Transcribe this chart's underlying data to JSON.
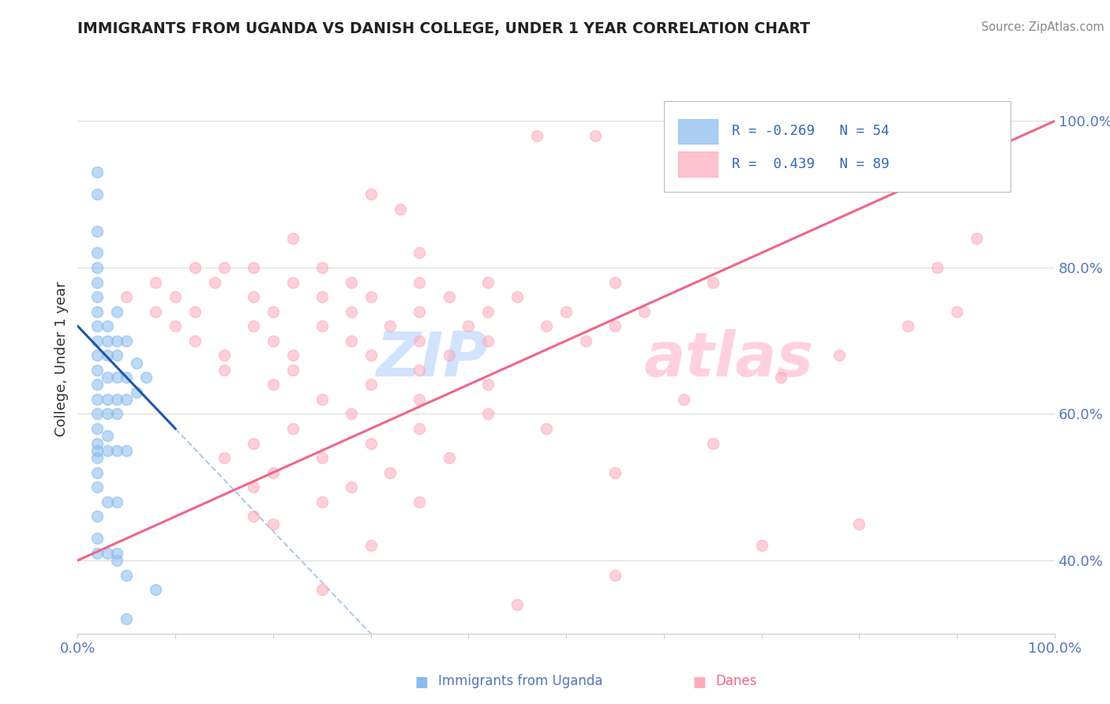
{
  "title": "IMMIGRANTS FROM UGANDA VS DANISH COLLEGE, UNDER 1 YEAR CORRELATION CHART",
  "source": "Source: ZipAtlas.com",
  "ylabel": "College, Under 1 year",
  "legend_label1": "Immigrants from Uganda",
  "legend_label2": "Danes",
  "color_uganda": "#88BBEE",
  "color_danes": "#FFAABB",
  "color_trendline_uganda": "#2255AA",
  "color_trendline_danes": "#EE6688",
  "color_trendline_ext": "#AACCEE",
  "xlim": [
    0.0,
    1.0
  ],
  "ylim": [
    0.3,
    1.05
  ],
  "right_yticks": [
    0.4,
    0.6,
    0.8,
    1.0
  ],
  "right_yticklabels": [
    "40.0%",
    "60.0%",
    "80.0%",
    "100.0%"
  ],
  "xtick_positions": [
    0.0,
    0.1,
    0.2,
    0.3,
    0.4,
    0.5,
    0.6,
    0.7,
    0.8,
    0.9,
    1.0
  ],
  "uganda_points": [
    [
      0.02,
      0.93
    ],
    [
      0.02,
      0.9
    ],
    [
      0.02,
      0.85
    ],
    [
      0.02,
      0.82
    ],
    [
      0.02,
      0.8
    ],
    [
      0.02,
      0.78
    ],
    [
      0.02,
      0.76
    ],
    [
      0.02,
      0.74
    ],
    [
      0.02,
      0.72
    ],
    [
      0.02,
      0.7
    ],
    [
      0.02,
      0.68
    ],
    [
      0.02,
      0.66
    ],
    [
      0.02,
      0.64
    ],
    [
      0.02,
      0.62
    ],
    [
      0.02,
      0.6
    ],
    [
      0.02,
      0.58
    ],
    [
      0.02,
      0.56
    ],
    [
      0.02,
      0.54
    ],
    [
      0.02,
      0.52
    ],
    [
      0.02,
      0.5
    ],
    [
      0.03,
      0.72
    ],
    [
      0.03,
      0.7
    ],
    [
      0.03,
      0.68
    ],
    [
      0.03,
      0.65
    ],
    [
      0.03,
      0.62
    ],
    [
      0.03,
      0.6
    ],
    [
      0.03,
      0.57
    ],
    [
      0.04,
      0.74
    ],
    [
      0.04,
      0.7
    ],
    [
      0.04,
      0.68
    ],
    [
      0.04,
      0.65
    ],
    [
      0.04,
      0.62
    ],
    [
      0.04,
      0.6
    ],
    [
      0.05,
      0.7
    ],
    [
      0.05,
      0.65
    ],
    [
      0.05,
      0.62
    ],
    [
      0.06,
      0.67
    ],
    [
      0.06,
      0.63
    ],
    [
      0.07,
      0.65
    ],
    [
      0.02,
      0.46
    ],
    [
      0.02,
      0.43
    ],
    [
      0.04,
      0.4
    ],
    [
      0.05,
      0.38
    ],
    [
      0.08,
      0.36
    ],
    [
      0.05,
      0.32
    ],
    [
      0.02,
      0.55
    ],
    [
      0.03,
      0.55
    ],
    [
      0.04,
      0.55
    ],
    [
      0.05,
      0.55
    ],
    [
      0.03,
      0.48
    ],
    [
      0.04,
      0.48
    ],
    [
      0.02,
      0.41
    ],
    [
      0.03,
      0.41
    ],
    [
      0.04,
      0.41
    ]
  ],
  "danes_points": [
    [
      0.47,
      0.98
    ],
    [
      0.53,
      0.98
    ],
    [
      0.3,
      0.9
    ],
    [
      0.33,
      0.88
    ],
    [
      0.22,
      0.84
    ],
    [
      0.35,
      0.82
    ],
    [
      0.12,
      0.8
    ],
    [
      0.15,
      0.8
    ],
    [
      0.18,
      0.8
    ],
    [
      0.25,
      0.8
    ],
    [
      0.08,
      0.78
    ],
    [
      0.14,
      0.78
    ],
    [
      0.22,
      0.78
    ],
    [
      0.28,
      0.78
    ],
    [
      0.35,
      0.78
    ],
    [
      0.42,
      0.78
    ],
    [
      0.55,
      0.78
    ],
    [
      0.65,
      0.78
    ],
    [
      0.05,
      0.76
    ],
    [
      0.1,
      0.76
    ],
    [
      0.18,
      0.76
    ],
    [
      0.25,
      0.76
    ],
    [
      0.3,
      0.76
    ],
    [
      0.38,
      0.76
    ],
    [
      0.45,
      0.76
    ],
    [
      0.08,
      0.74
    ],
    [
      0.12,
      0.74
    ],
    [
      0.2,
      0.74
    ],
    [
      0.28,
      0.74
    ],
    [
      0.35,
      0.74
    ],
    [
      0.42,
      0.74
    ],
    [
      0.5,
      0.74
    ],
    [
      0.58,
      0.74
    ],
    [
      0.1,
      0.72
    ],
    [
      0.18,
      0.72
    ],
    [
      0.25,
      0.72
    ],
    [
      0.32,
      0.72
    ],
    [
      0.4,
      0.72
    ],
    [
      0.48,
      0.72
    ],
    [
      0.55,
      0.72
    ],
    [
      0.12,
      0.7
    ],
    [
      0.2,
      0.7
    ],
    [
      0.28,
      0.7
    ],
    [
      0.35,
      0.7
    ],
    [
      0.42,
      0.7
    ],
    [
      0.52,
      0.7
    ],
    [
      0.15,
      0.68
    ],
    [
      0.22,
      0.68
    ],
    [
      0.3,
      0.68
    ],
    [
      0.38,
      0.68
    ],
    [
      0.15,
      0.66
    ],
    [
      0.22,
      0.66
    ],
    [
      0.35,
      0.66
    ],
    [
      0.2,
      0.64
    ],
    [
      0.3,
      0.64
    ],
    [
      0.42,
      0.64
    ],
    [
      0.25,
      0.62
    ],
    [
      0.35,
      0.62
    ],
    [
      0.28,
      0.6
    ],
    [
      0.42,
      0.6
    ],
    [
      0.22,
      0.58
    ],
    [
      0.35,
      0.58
    ],
    [
      0.18,
      0.56
    ],
    [
      0.3,
      0.56
    ],
    [
      0.15,
      0.54
    ],
    [
      0.25,
      0.54
    ],
    [
      0.38,
      0.54
    ],
    [
      0.2,
      0.52
    ],
    [
      0.32,
      0.52
    ],
    [
      0.18,
      0.5
    ],
    [
      0.28,
      0.5
    ],
    [
      0.25,
      0.48
    ],
    [
      0.35,
      0.48
    ],
    [
      0.2,
      0.45
    ],
    [
      0.48,
      0.58
    ],
    [
      0.62,
      0.62
    ],
    [
      0.72,
      0.65
    ],
    [
      0.78,
      0.68
    ],
    [
      0.85,
      0.72
    ],
    [
      0.9,
      0.74
    ],
    [
      0.55,
      0.52
    ],
    [
      0.65,
      0.56
    ],
    [
      0.7,
      0.42
    ],
    [
      0.8,
      0.45
    ],
    [
      0.88,
      0.8
    ],
    [
      0.92,
      0.84
    ],
    [
      0.45,
      0.34
    ],
    [
      0.55,
      0.38
    ],
    [
      0.3,
      0.42
    ],
    [
      0.25,
      0.36
    ],
    [
      0.18,
      0.46
    ]
  ],
  "danes_trendline_start_x": 0.0,
  "danes_trendline_end_x": 1.0,
  "danes_trendline_start_y": 0.4,
  "danes_trendline_end_y": 1.0,
  "uganda_trendline_start_x": 0.0,
  "uganda_trendline_start_y": 0.72,
  "uganda_trendline_solid_end_x": 0.1,
  "uganda_trendline_dashed_end_x": 0.3,
  "uganda_trendline_end_y": 0.3
}
